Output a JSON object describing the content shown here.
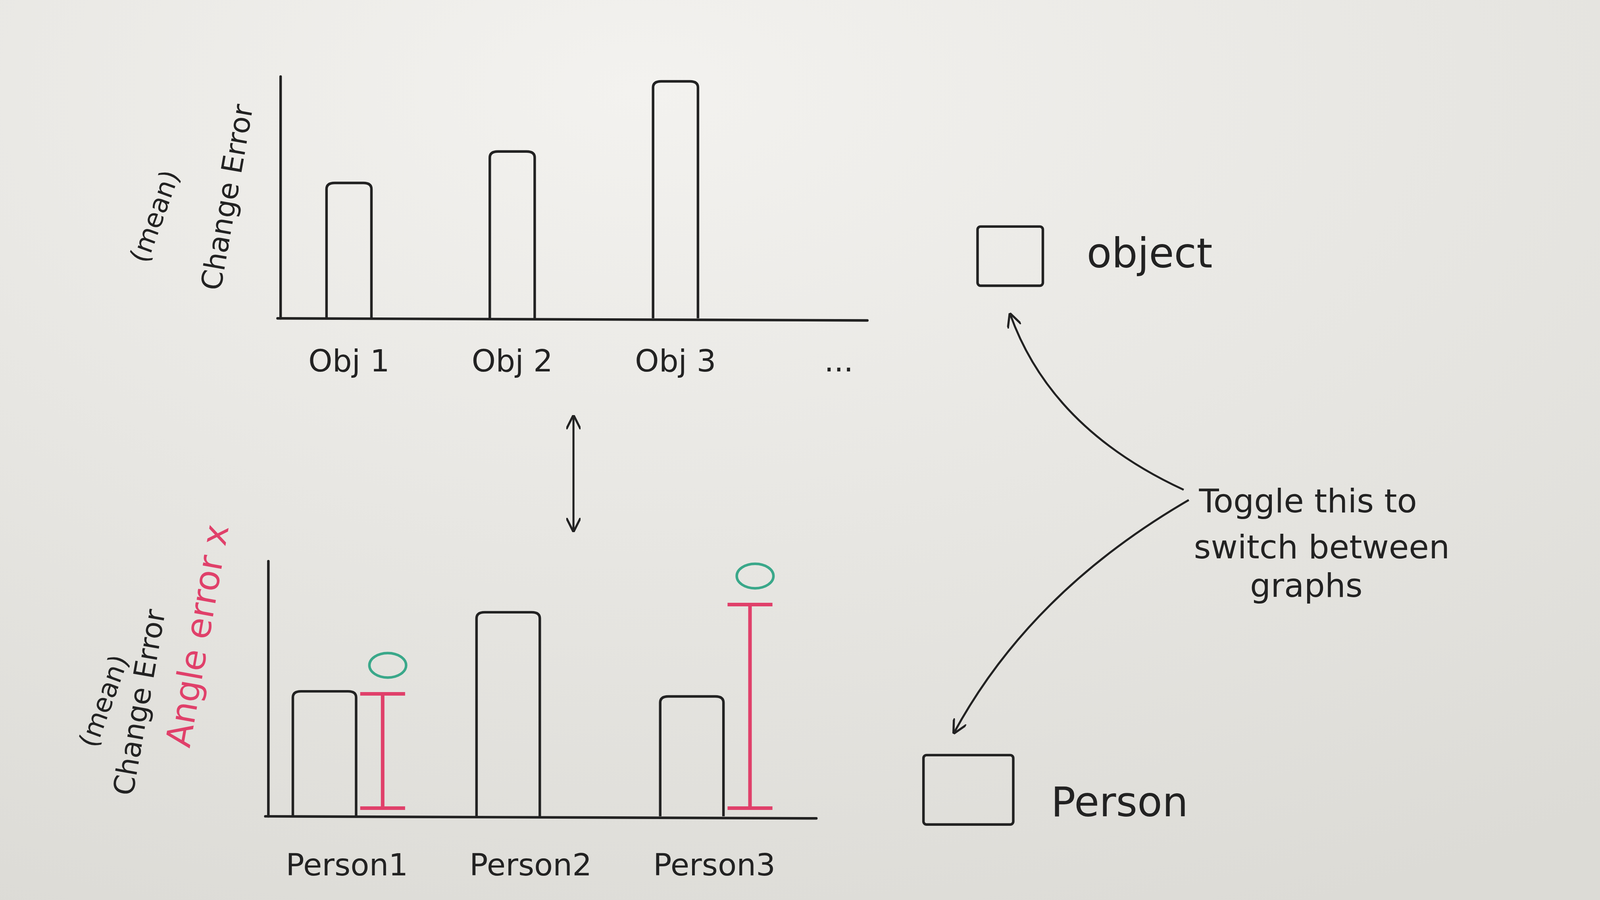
{
  "chart_data": [
    {
      "type": "bar",
      "ylabel": "(mean)",
      "categories": [
        "Obj 1",
        "Obj 2",
        "Obj 3",
        "..."
      ],
      "series": [
        {
          "name": "Change Error",
          "color": "#222222",
          "values": [
            56,
            69,
            98,
            null
          ]
        }
      ],
      "ylim": [
        0,
        100
      ],
      "tick_labels": false
    },
    {
      "type": "bar",
      "ylabel": "(mean)",
      "categories": [
        "Person1",
        "Person2",
        "Person3"
      ],
      "series": [
        {
          "name": "Change Error",
          "color": "#222222",
          "values": [
            49,
            80,
            47
          ]
        },
        {
          "name": "Angle error x",
          "color": "#e0406a",
          "type": "i_beam",
          "marker": "circle",
          "values": [
            48,
            null,
            83
          ]
        }
      ],
      "ylim": [
        0,
        100
      ],
      "tick_labels": false
    }
  ],
  "toggle": {
    "text": [
      "Toggle this to",
      "switch between",
      "graphs"
    ],
    "options": [
      "object",
      "Person"
    ]
  }
}
